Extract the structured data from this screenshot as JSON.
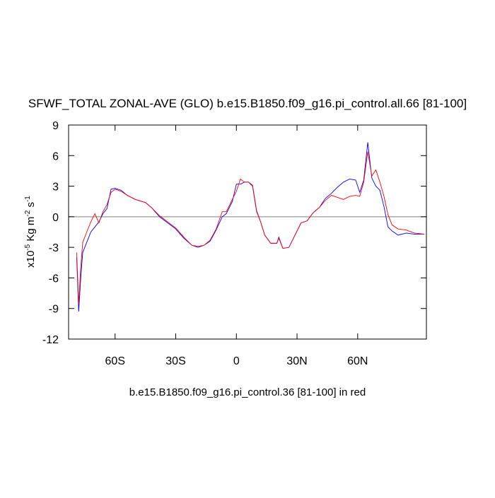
{
  "chart_data": {
    "type": "line",
    "title": "SFWF_TOTAL ZONAL-AVE (GLO) b.e15.B1850.f09_g16.pi_control.all.66 [81-100]",
    "xlabel": "b.e15.B1850.f09_g16.pi_control.36 [81-100] in red",
    "ylabel_parts": [
      "x10",
      "-5",
      " Kg m",
      "-2",
      " s",
      "-1"
    ],
    "x": [
      -79,
      -78,
      -77,
      -76,
      -74,
      -72,
      -70,
      -68,
      -66,
      -64,
      -62,
      -60,
      -57,
      -54,
      -50,
      -45,
      -42,
      -38,
      -34,
      -30,
      -26,
      -22,
      -19,
      -16,
      -13,
      -10,
      -7,
      -5,
      -2,
      0,
      2,
      4,
      6,
      8,
      10,
      12,
      14,
      17,
      20,
      21,
      23,
      26,
      29,
      32,
      35,
      38,
      41,
      44,
      47,
      50,
      53,
      56,
      59,
      61,
      63,
      65,
      67,
      69,
      71,
      73,
      75,
      77,
      80,
      84,
      88,
      93
    ],
    "series": [
      {
        "color": "#0000ff",
        "values": [
          -4.0,
          -9.3,
          -6.0,
          -3.5,
          -2.5,
          -1.5,
          -1.0,
          -0.5,
          0.3,
          0.8,
          2.7,
          2.8,
          2.6,
          2.1,
          1.7,
          1.4,
          0.9,
          0.0,
          -0.6,
          -1.2,
          -2.1,
          -2.8,
          -3.0,
          -2.8,
          -2.4,
          -1.3,
          0.0,
          0.3,
          1.5,
          3.2,
          3.2,
          3.4,
          3.4,
          3.0,
          0.5,
          -0.5,
          -1.8,
          -2.6,
          -2.6,
          -2.0,
          -3.1,
          -3.0,
          -1.8,
          -0.6,
          -0.4,
          0.4,
          0.9,
          1.8,
          2.3,
          2.9,
          3.4,
          3.7,
          3.6,
          2.4,
          3.6,
          7.3,
          3.8,
          3.0,
          2.6,
          1.0,
          -1.0,
          -1.4,
          -1.8,
          -1.6,
          -1.7,
          -1.7
        ]
      },
      {
        "color": "#ff0000",
        "values": [
          -3.5,
          -8.6,
          -5.0,
          -2.5,
          -1.5,
          -0.5,
          0.3,
          -0.6,
          0.5,
          1.2,
          2.4,
          2.7,
          2.5,
          2.1,
          1.7,
          1.4,
          0.9,
          0.1,
          -0.5,
          -1.1,
          -2.0,
          -2.8,
          -2.9,
          -2.8,
          -2.3,
          -1.2,
          0.5,
          0.5,
          1.7,
          2.5,
          3.7,
          3.4,
          3.4,
          3.1,
          0.6,
          -0.5,
          -1.8,
          -2.6,
          -2.6,
          -2.1,
          -3.1,
          -3.0,
          -1.8,
          -0.6,
          -0.4,
          0.4,
          0.9,
          1.6,
          2.1,
          1.9,
          1.7,
          2.0,
          2.1,
          2.0,
          3.4,
          6.4,
          4.0,
          4.6,
          3.4,
          2.0,
          0.2,
          -0.8,
          -1.2,
          -1.3,
          -1.6,
          -1.7
        ]
      }
    ],
    "xlim": [
      -83,
      94
    ],
    "xticks": [
      {
        "value": -60,
        "label": "60S"
      },
      {
        "value": -30,
        "label": "30S"
      },
      0,
      {
        "value": 30,
        "label": "30N"
      },
      {
        "value": 60,
        "label": "60N"
      }
    ],
    "ylim": [
      -12,
      9
    ],
    "yticks": [
      -12,
      -9,
      -6,
      -3,
      0,
      3,
      6,
      9
    ],
    "hline": 0,
    "hline_color": "#999999"
  }
}
